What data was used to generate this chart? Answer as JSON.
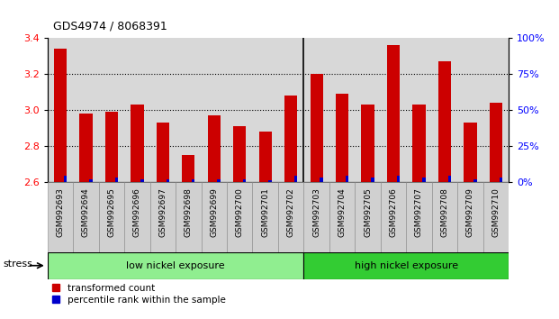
{
  "title": "GDS4974 / 8068391",
  "samples": [
    "GSM992693",
    "GSM992694",
    "GSM992695",
    "GSM992696",
    "GSM992697",
    "GSM992698",
    "GSM992699",
    "GSM992700",
    "GSM992701",
    "GSM992702",
    "GSM992703",
    "GSM992704",
    "GSM992705",
    "GSM992706",
    "GSM992707",
    "GSM992708",
    "GSM992709",
    "GSM992710"
  ],
  "transformed_count": [
    3.34,
    2.98,
    2.99,
    3.03,
    2.93,
    2.75,
    2.97,
    2.91,
    2.88,
    3.08,
    3.2,
    3.09,
    3.03,
    3.36,
    3.03,
    3.27,
    2.93,
    3.04
  ],
  "percentile_rank": [
    4,
    2,
    3,
    2,
    2,
    2,
    2,
    2,
    1,
    4,
    3,
    4,
    3,
    4,
    3,
    4,
    2,
    3
  ],
  "low_nickel_count": 10,
  "ylim_left": [
    2.6,
    3.4
  ],
  "ylim_right": [
    0,
    100
  ],
  "yticks_left": [
    2.6,
    2.8,
    3.0,
    3.2,
    3.4
  ],
  "yticks_right": [
    0,
    25,
    50,
    75,
    100
  ],
  "bar_color_red": "#cc0000",
  "bar_color_blue": "#0000cc",
  "bg_color_low": "#90ee90",
  "bg_color_high": "#33cc33",
  "label_low": "low nickel exposure",
  "label_high": "high nickel exposure",
  "stress_label": "stress",
  "legend_red": "transformed count",
  "legend_blue": "percentile rank within the sample",
  "baseline": 2.6,
  "bar_width": 0.5,
  "blue_bar_width": 0.12
}
